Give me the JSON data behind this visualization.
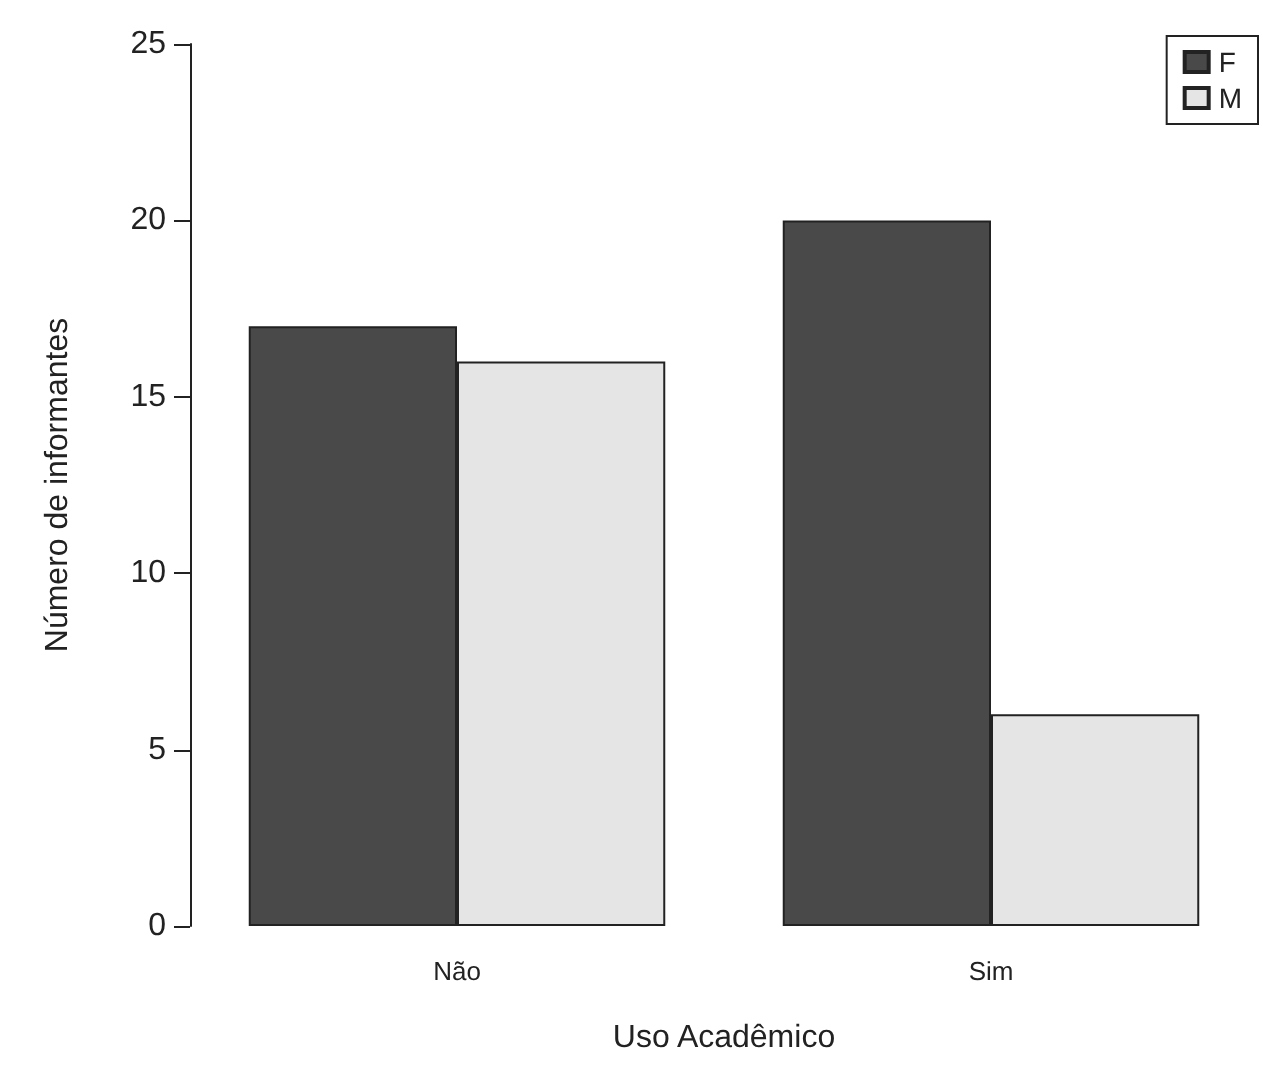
{
  "chart_data": {
    "type": "bar",
    "xlabel": "Uso Acadêmico",
    "ylabel": "Número de informantes",
    "categories": [
      "Não",
      "Sim"
    ],
    "series": [
      {
        "name": "F",
        "color": "#494949",
        "values": [
          17,
          20
        ]
      },
      {
        "name": "M",
        "color": "#e5e5e5",
        "values": [
          16,
          6
        ]
      }
    ],
    "ylim": [
      0,
      25
    ],
    "yticks": [
      0,
      5,
      10,
      15,
      20,
      25
    ],
    "grid": false,
    "legend": "top right"
  }
}
